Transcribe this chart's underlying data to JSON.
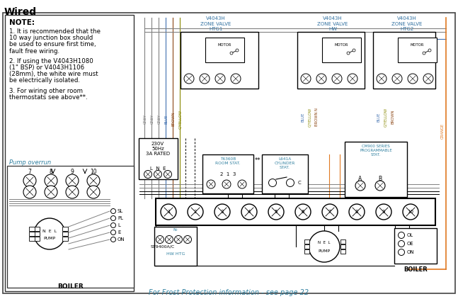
{
  "title": "Wired",
  "bg_color": "#ffffff",
  "note_text_bold": "NOTE:",
  "note_lines": [
    "1. It is recommended that the",
    "10 way junction box should",
    "be used to ensure first time,",
    "fault free wiring.",
    "",
    "2. If using the V4043H1080",
    "(1\" BSP) or V4043H1106",
    "(28mm), the white wire must",
    "be electrically isolated.",
    "",
    "3. For wiring other room",
    "thermostats see above**."
  ],
  "pump_overrun_label": "Pump overrun",
  "footer_text": "For Frost Protection information - see page 22",
  "wire_colors": {
    "grey": "#808080",
    "blue": "#4070b0",
    "brown": "#8B4513",
    "gyellow": "#888800",
    "orange": "#E07820",
    "black": "#000000",
    "teal": "#3080a0"
  },
  "junction_box_nums": [
    "1",
    "2",
    "3",
    "4",
    "5",
    "6",
    "7",
    "8",
    "9",
    "10"
  ],
  "power_label": "230V\n50Hz\n3A RATED",
  "st9400_label": "ST9400A/C",
  "hw_htg_label": "HW HTG",
  "boiler_label": "BOILER",
  "pump_label": "PUMP",
  "t6360b_label": "T6360B\nROOM STAT.",
  "l641a_label": "L641A\nCYLINDER\nSTAT.",
  "cm900_label": "CM900 SERIES\nPROGRAMMABLE\nSTAT.",
  "motor_label": "MOTOR",
  "zv_labels": [
    "V4043H\nZONE VALVE\nHTG1",
    "V4043H\nZONE VALVE\nHW",
    "V4043H\nZONE VALVE\nHTG2"
  ],
  "zv_label_color": "#3070a0"
}
